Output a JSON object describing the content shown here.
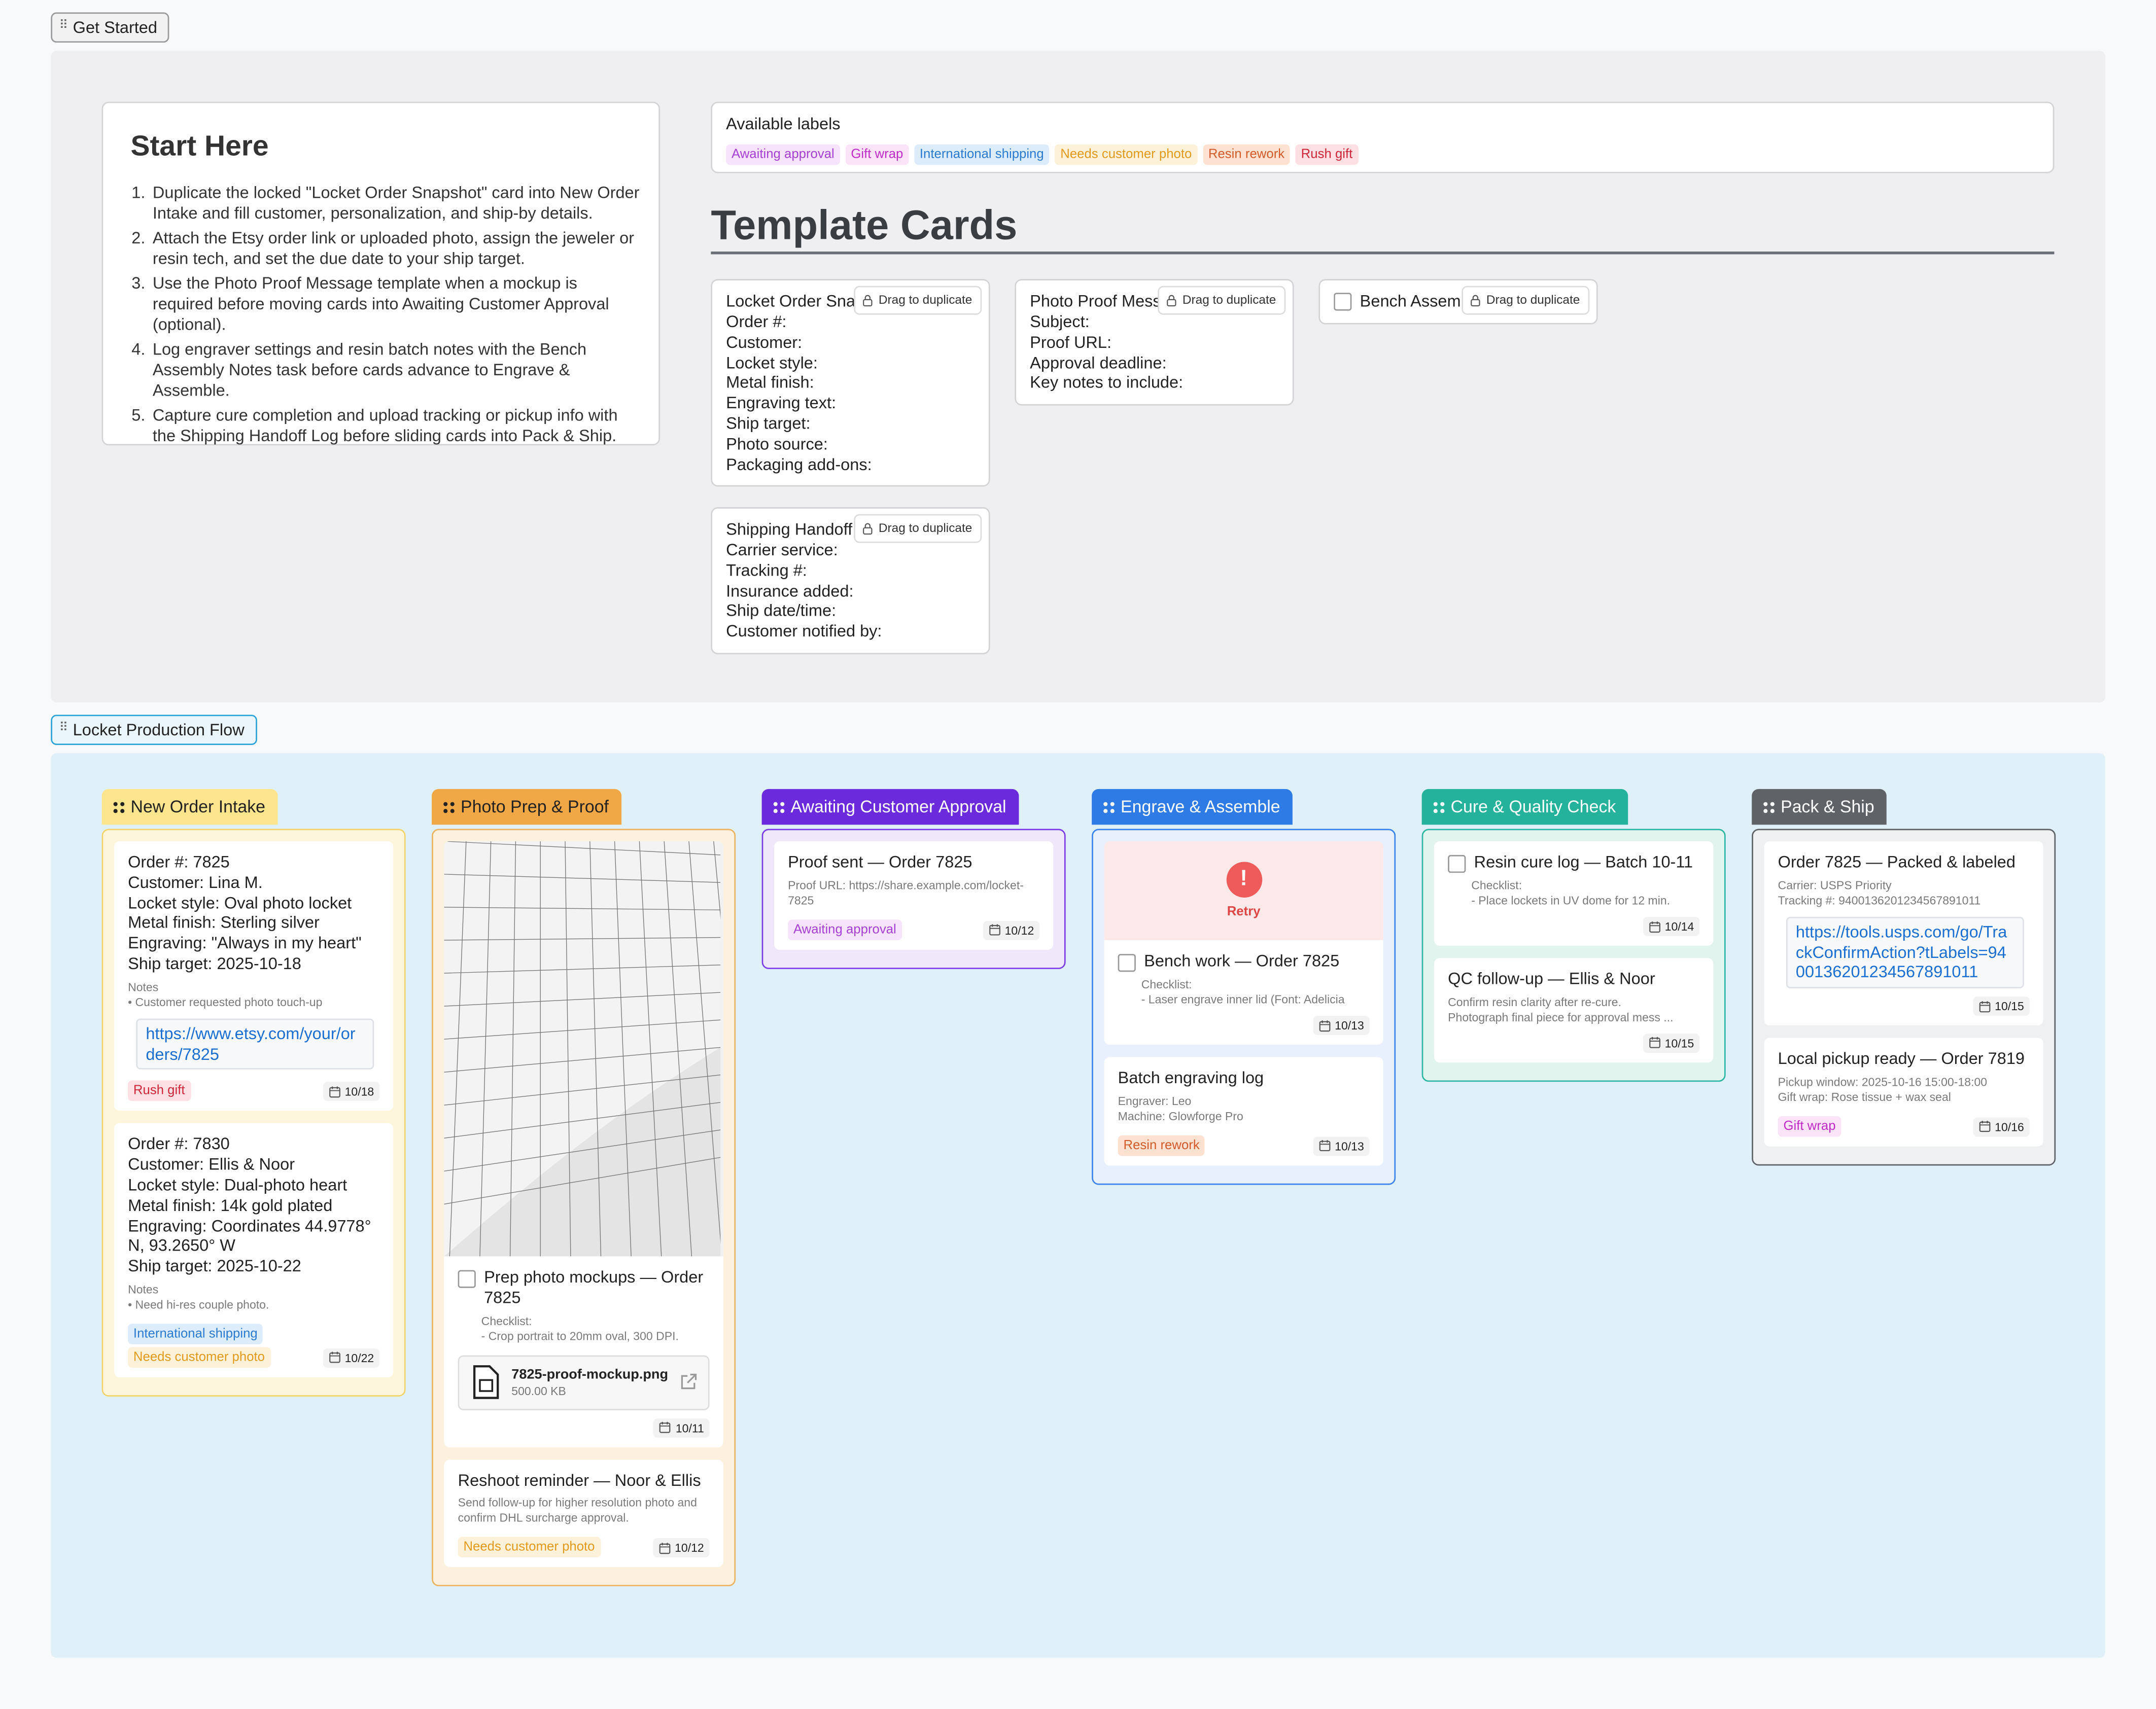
{
  "get_started": {
    "tab": "Get Started",
    "start_here": {
      "title": "Start Here",
      "steps": [
        "Duplicate the locked \"Locket Order Snapshot\" card into New Order Intake and fill customer, personalization, and ship-by details.",
        "Attach the Etsy order link or uploaded photo, assign the jeweler or resin tech, and set the due date to your ship target.",
        "Use the Photo Proof Message template when a mockup is required before moving cards into Awaiting Customer Approval (optional).",
        "Log engraver settings and resin batch notes with the Bench Assembly Notes task before cards advance to Engrave & Assemble.",
        "Capture cure completion and upload tracking or pickup info with the Shipping Handoff Log before sliding cards into Pack & Ship."
      ]
    },
    "labels": {
      "title": "Available labels",
      "items": [
        {
          "name": "Awaiting approval",
          "color": "#a63fd3",
          "bg": "#f6e4fc"
        },
        {
          "name": "Gift wrap",
          "color": "#c02bc8",
          "bg": "#fbe3f8"
        },
        {
          "name": "International shipping",
          "color": "#2a7bd0",
          "bg": "#dcecfb"
        },
        {
          "name": "Needs customer photo",
          "color": "#e39a1c",
          "bg": "#fdf1da"
        },
        {
          "name": "Resin rework",
          "color": "#d25a2b",
          "bg": "#fde2d1"
        },
        {
          "name": "Rush gift",
          "color": "#cf2439",
          "bg": "#fde0e3"
        }
      ]
    },
    "templates": {
      "title": "Template Cards",
      "action": "Drag to duplicate",
      "cards": [
        {
          "title": "Locket Order Snapshot",
          "fields": [
            "Order #:",
            "Customer:",
            "Locket style:",
            "Metal finish:",
            "Engraving text:",
            "Ship target:",
            "Photo source:",
            "Packaging add-ons:"
          ]
        },
        {
          "title": "Photo Proof Message",
          "fields": [
            "Subject:",
            "Proof URL:",
            "Approval deadline:",
            "Key notes to include:"
          ]
        },
        {
          "title": "Bench Assembly Notes",
          "checkbox": true,
          "fields": []
        },
        {
          "title": "Shipping Handoff Log",
          "fields": [
            "Carrier service:",
            "Tracking #:",
            "Insurance added:",
            "Ship date/time:",
            "Customer notified by:"
          ]
        }
      ]
    }
  },
  "board": {
    "tab": "Locket Production Flow",
    "columns": [
      {
        "title": "New Order Intake",
        "head": "#fde58e",
        "ink": "#222",
        "border": "#f3d46c",
        "bg": "#fdf6dc",
        "cards": [
          {
            "lines": [
              "Order #: 7825",
              "Customer: Lina M.",
              "Locket style: Oval photo locket",
              "Metal finish: Sterling silver",
              "Engraving: \"Always in my heart\"",
              "Ship target: 2025-10-18"
            ],
            "meta": [
              "Notes",
              "• Customer requested photo touch-up"
            ],
            "link": "https://www.etsy.com/your/orders/7825",
            "labels": [
              "Rush gift"
            ],
            "date": "10/18"
          },
          {
            "lines": [
              "Order #: 7830",
              "Customer: Ellis & Noor",
              "Locket style: Dual-photo heart",
              "Metal finish: 14k gold plated",
              "Engraving: Coordinates 44.9778° N, 93.2650° W",
              "Ship target: 2025-10-22"
            ],
            "meta": [
              "Notes",
              "• Need hi-res couple photo."
            ],
            "labels": [
              "International shipping",
              "Needs customer photo"
            ],
            "date": "10/22"
          }
        ]
      },
      {
        "title": "Photo Prep & Proof",
        "head": "#f0a847",
        "ink": "#222",
        "border": "#ebb461",
        "bg": "#fcf1de",
        "cards": [
          {
            "image": true,
            "checkbox": true,
            "title": "Prep photo mockups — Order 7825",
            "meta": [
              "Checklist:",
              "- Crop portrait to 20mm oval, 300 DPI."
            ],
            "attachment": {
              "name": "7825-proof-mockup.png",
              "size": "500.00 KB"
            },
            "date": "10/11"
          },
          {
            "title": "Reshoot reminder — Noor & Ellis",
            "meta": [
              "Send follow-up for higher resolution photo and confirm DHL surcharge approval."
            ],
            "labels": [
              "Needs customer photo"
            ],
            "date": "10/12"
          }
        ]
      },
      {
        "title": "Awaiting Customer Approval",
        "head": "#6b2bdc",
        "ink": "#fff",
        "border": "#7b3ce6",
        "bg": "#eee8fa",
        "cards": [
          {
            "title": "Proof sent — Order 7825",
            "meta": [
              "Proof URL: https://share.example.com/locket-7825"
            ],
            "labels": [
              "Awaiting approval"
            ],
            "date": "10/12"
          }
        ]
      },
      {
        "title": "Engrave & Assemble",
        "head": "#2f7be6",
        "ink": "#fff",
        "border": "#3a82ec",
        "bg": "#e7f0fc",
        "cards": [
          {
            "error": "Retry",
            "checkbox": true,
            "title": "Bench work — Order 7825",
            "meta": [
              "Checklist:",
              "- Laser engrave inner lid (Font: Adelicia"
            ],
            "date": "10/13"
          },
          {
            "title": "Batch engraving log",
            "meta": [
              "Engraver: Leo",
              "Machine: Glowforge Pro"
            ],
            "labels": [
              "Resin rework"
            ],
            "date": "10/13"
          }
        ]
      },
      {
        "title": "Cure & Quality Check",
        "head": "#24b39a",
        "ink": "#fff",
        "border": "#2db6a1",
        "bg": "#e1f4ee",
        "cards": [
          {
            "checkbox": true,
            "title": "Resin cure log — Batch 10-11",
            "meta": [
              "Checklist:",
              "- Place lockets in UV dome for 12 min."
            ],
            "date": "10/14"
          },
          {
            "title": "QC follow-up — Ellis & Noor",
            "meta": [
              "Confirm resin clarity after re-cure.",
              "Photograph final piece for approval mess ..."
            ],
            "date": "10/15"
          }
        ]
      },
      {
        "title": "Pack & Ship",
        "head": "#5f6368",
        "ink": "#fff",
        "border": "#5f6368",
        "bg": "#eef0f2",
        "cards": [
          {
            "title": "Order 7825 — Packed & labeled",
            "meta": [
              "Carrier: USPS Priority",
              "Tracking #: 9400136201234567891011"
            ],
            "link": "https://tools.usps.com/go/TrackConfirmAction?tLabels=9400136201234567891011",
            "date": "10/15"
          },
          {
            "title": "Local pickup ready — Order 7819",
            "meta": [
              "Pickup window: 2025-10-16 15:00-18:00",
              "Gift wrap: Rose tissue + wax seal"
            ],
            "labels": [
              "Gift wrap"
            ],
            "date": "10/16"
          }
        ]
      }
    ]
  }
}
